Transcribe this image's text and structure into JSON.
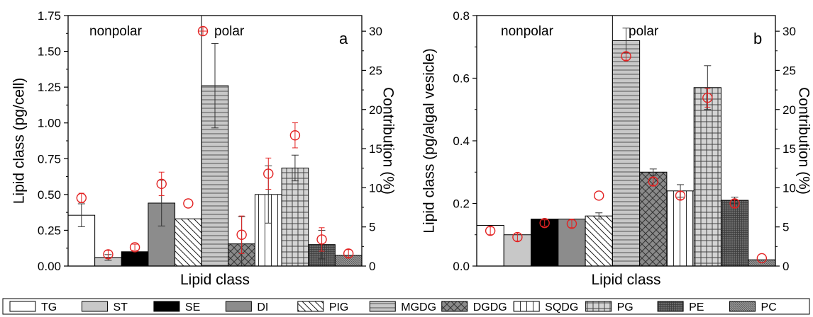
{
  "chart_data": [
    {
      "type": "bar",
      "panel": "a",
      "categories": [
        "TG",
        "ST",
        "SE",
        "DI",
        "PIG",
        "MGDG",
        "DGDG",
        "SQDG",
        "PG",
        "PE",
        "PC"
      ],
      "series": [
        {
          "name": "",
          "axis": "left",
          "values": [
            0.355,
            0.06,
            0.1,
            0.44,
            0.33,
            1.26,
            0.155,
            0.5,
            0.685,
            0.15,
            0.075
          ],
          "errors": [
            0.08,
            0.02,
            0.0,
            0.16,
            0.0,
            0.295,
            0.19,
            0.2,
            0.09,
            0.1,
            0.0
          ]
        },
        {
          "name": "polar",
          "axis": "right",
          "marker": "circle-cross",
          "values": [
            8.7,
            1.5,
            2.4,
            10.5,
            8.0,
            null,
            4.0,
            11.8,
            16.7,
            3.4,
            1.6
          ],
          "errors": [
            0.6,
            0.5,
            0.4,
            1.5,
            0.0,
            null,
            2.4,
            2.0,
            1.6,
            1.5,
            0.5
          ]
        }
      ],
      "ylabel": "Lipid class (pg/cell)",
      "y2label": "Contribution (%)",
      "xlabel": "Lipid class",
      "ylim": [
        0,
        1.75
      ],
      "y2lim": [
        0,
        32
      ],
      "yticks": [
        "0.00",
        "0.25",
        "0.50",
        "0.75",
        "1.00",
        "1.25",
        "1.50",
        "1.75"
      ],
      "y2ticks": [
        "0",
        "5",
        "10",
        "15",
        "20",
        "25",
        "30"
      ],
      "y2tick_values": [
        0,
        5,
        10,
        15,
        20,
        25,
        30
      ],
      "divider_after": "PIG",
      "region_labels": [
        "nonpolar",
        "polar"
      ],
      "panel_label": "a"
    },
    {
      "type": "bar",
      "panel": "b",
      "categories": [
        "TG",
        "ST",
        "SE",
        "DI",
        "PIG",
        "MGDG",
        "DGDG",
        "SQDG",
        "PG",
        "PE",
        "PC"
      ],
      "series": [
        {
          "name": "",
          "axis": "left",
          "values": [
            0.13,
            0.1,
            0.15,
            0.15,
            0.16,
            0.72,
            0.3,
            0.24,
            0.57,
            0.21,
            0.02
          ],
          "errors": [
            0.0,
            0.0,
            0.0,
            0.0,
            0.01,
            0.04,
            0.01,
            0.02,
            0.07,
            0.01,
            0.0
          ]
        },
        {
          "name": "polar",
          "axis": "right",
          "marker": "circle-cross",
          "values": [
            4.5,
            3.7,
            5.5,
            5.4,
            9.0,
            26.8,
            10.8,
            9.0,
            21.5,
            8.0,
            1.0
          ],
          "errors": [
            0.5,
            0.5,
            0.4,
            0.5,
            0.0,
            0.5,
            0.5,
            0.5,
            1.2,
            0.5,
            0.0
          ]
        }
      ],
      "ylabel": "Lipid class (pg/algal vesicle)",
      "y2label": "Contribution (%)",
      "xlabel": "Lipid class",
      "ylim": [
        0,
        0.8
      ],
      "y2lim": [
        0,
        32
      ],
      "yticks": [
        "0.0",
        "0.2",
        "0.4",
        "0.6",
        "0.8"
      ],
      "y2ticks": [
        "0",
        "5",
        "10",
        "15",
        "20",
        "25",
        "30"
      ],
      "y2tick_values": [
        0,
        5,
        10,
        15,
        20,
        25,
        30
      ],
      "divider_after": "PIG",
      "region_labels": [
        "nonpolar",
        "polar"
      ],
      "panel_label": "b"
    }
  ],
  "legend": {
    "placement": "bottom",
    "items": [
      {
        "label": "TG",
        "pattern": "white"
      },
      {
        "label": "ST",
        "pattern": "light-gray"
      },
      {
        "label": "SE",
        "pattern": "black"
      },
      {
        "label": "DI",
        "pattern": "gray"
      },
      {
        "label": "PIG",
        "pattern": "diagonal"
      },
      {
        "label": "MGDG",
        "pattern": "horizontal"
      },
      {
        "label": "DGDG",
        "pattern": "crosshatch"
      },
      {
        "label": "SQDG",
        "pattern": "vertical"
      },
      {
        "label": "PG",
        "pattern": "grid"
      },
      {
        "label": "PE",
        "pattern": "dark-grid"
      },
      {
        "label": "PC",
        "pattern": "dense"
      }
    ]
  },
  "colors": {
    "marker": "#e32222",
    "bar_stroke": "#000000"
  }
}
